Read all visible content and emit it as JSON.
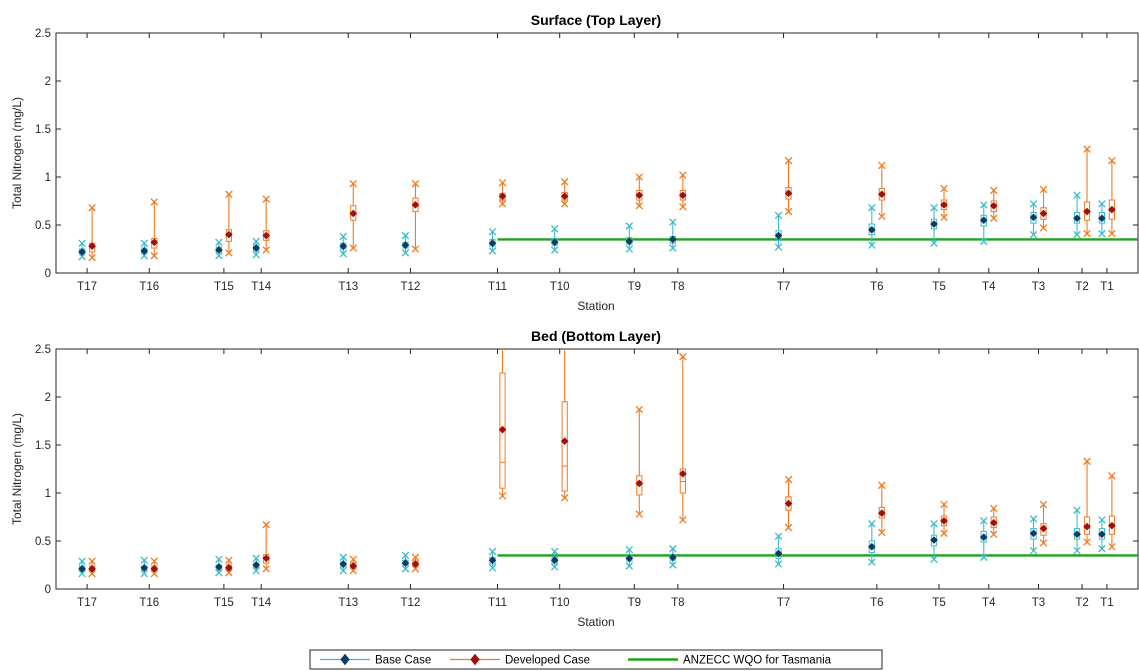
{
  "colors": {
    "base": "#3cbcc8",
    "base_marker": "#0e3a63",
    "developed": "#f07b22",
    "developed_marker": "#9e0f0f",
    "wqo": "#1aa51a",
    "axis": "#262626"
  },
  "legend": {
    "placement": "bottom",
    "entries": [
      "Base Case",
      "Developed Case",
      "ANZECC WQO for Tasmania"
    ]
  },
  "chart_data": [
    {
      "type": "box",
      "title": "Surface (Top Layer)",
      "xlabel": "Station",
      "ylabel": "Total Nitrogen (mg/L)",
      "ylim": [
        0,
        2.5
      ],
      "yticks": [
        "0",
        "0.5",
        "1",
        "1.5",
        "2",
        "2.5"
      ],
      "grid": false,
      "wqo_threshold": 0.35,
      "wqo_from_station": "T11",
      "stations": [
        {
          "name": "T17",
          "pos": 17,
          "base": {
            "min": 0.17,
            "q1": 0.2,
            "median": 0.22,
            "mean": 0.22,
            "q3": 0.25,
            "max": 0.31
          },
          "developed": {
            "min": 0.16,
            "q1": 0.22,
            "median": 0.27,
            "mean": 0.28,
            "q3": 0.31,
            "max": 0.68
          }
        },
        {
          "name": "T16",
          "pos": 16,
          "base": {
            "min": 0.18,
            "q1": 0.21,
            "median": 0.23,
            "mean": 0.23,
            "q3": 0.26,
            "max": 0.31
          },
          "developed": {
            "min": 0.18,
            "q1": 0.26,
            "median": 0.31,
            "mean": 0.32,
            "q3": 0.36,
            "max": 0.74
          }
        },
        {
          "name": "T15",
          "pos": 14.8,
          "base": {
            "min": 0.18,
            "q1": 0.22,
            "median": 0.24,
            "mean": 0.24,
            "q3": 0.27,
            "max": 0.32
          },
          "developed": {
            "min": 0.21,
            "q1": 0.33,
            "median": 0.39,
            "mean": 0.4,
            "q3": 0.45,
            "max": 0.82
          }
        },
        {
          "name": "T14",
          "pos": 14.2,
          "base": {
            "min": 0.19,
            "q1": 0.23,
            "median": 0.25,
            "mean": 0.26,
            "q3": 0.29,
            "max": 0.33
          },
          "developed": {
            "min": 0.24,
            "q1": 0.34,
            "median": 0.38,
            "mean": 0.39,
            "q3": 0.44,
            "max": 0.77
          }
        },
        {
          "name": "T13",
          "pos": 12.8,
          "base": {
            "min": 0.2,
            "q1": 0.25,
            "median": 0.28,
            "mean": 0.28,
            "q3": 0.31,
            "max": 0.38
          },
          "developed": {
            "min": 0.26,
            "q1": 0.55,
            "median": 0.62,
            "mean": 0.62,
            "q3": 0.7,
            "max": 0.93
          }
        },
        {
          "name": "T12",
          "pos": 11.8,
          "base": {
            "min": 0.21,
            "q1": 0.26,
            "median": 0.29,
            "mean": 0.29,
            "q3": 0.32,
            "max": 0.39
          },
          "developed": {
            "min": 0.25,
            "q1": 0.64,
            "median": 0.7,
            "mean": 0.71,
            "q3": 0.78,
            "max": 0.93
          }
        },
        {
          "name": "T11",
          "pos": 10.4,
          "base": {
            "min": 0.23,
            "q1": 0.28,
            "median": 0.31,
            "mean": 0.31,
            "q3": 0.35,
            "max": 0.43
          },
          "developed": {
            "min": 0.72,
            "q1": 0.76,
            "median": 0.79,
            "mean": 0.8,
            "q3": 0.83,
            "max": 0.94
          }
        },
        {
          "name": "T10",
          "pos": 9.4,
          "base": {
            "min": 0.24,
            "q1": 0.29,
            "median": 0.32,
            "mean": 0.32,
            "q3": 0.36,
            "max": 0.46
          },
          "developed": {
            "min": 0.72,
            "q1": 0.76,
            "median": 0.79,
            "mean": 0.8,
            "q3": 0.84,
            "max": 0.95
          }
        },
        {
          "name": "T9",
          "pos": 8.2,
          "base": {
            "min": 0.25,
            "q1": 0.3,
            "median": 0.33,
            "mean": 0.33,
            "q3": 0.37,
            "max": 0.49
          },
          "developed": {
            "min": 0.7,
            "q1": 0.76,
            "median": 0.8,
            "mean": 0.81,
            "q3": 0.86,
            "max": 1.0
          }
        },
        {
          "name": "T8",
          "pos": 7.5,
          "base": {
            "min": 0.26,
            "q1": 0.31,
            "median": 0.34,
            "mean": 0.35,
            "q3": 0.38,
            "max": 0.53
          },
          "developed": {
            "min": 0.69,
            "q1": 0.76,
            "median": 0.8,
            "mean": 0.81,
            "q3": 0.86,
            "max": 1.02
          }
        },
        {
          "name": "T7",
          "pos": 5.8,
          "base": {
            "min": 0.27,
            "q1": 0.34,
            "median": 0.38,
            "mean": 0.39,
            "q3": 0.44,
            "max": 0.6
          },
          "developed": {
            "min": 0.64,
            "q1": 0.77,
            "median": 0.82,
            "mean": 0.83,
            "q3": 0.89,
            "max": 1.17
          }
        },
        {
          "name": "T6",
          "pos": 4.3,
          "base": {
            "min": 0.29,
            "q1": 0.4,
            "median": 0.45,
            "mean": 0.45,
            "q3": 0.51,
            "max": 0.68
          },
          "developed": {
            "min": 0.59,
            "q1": 0.76,
            "median": 0.82,
            "mean": 0.82,
            "q3": 0.88,
            "max": 1.12
          }
        },
        {
          "name": "T5",
          "pos": 3.3,
          "base": {
            "min": 0.31,
            "q1": 0.46,
            "median": 0.51,
            "mean": 0.51,
            "q3": 0.56,
            "max": 0.68
          },
          "developed": {
            "min": 0.58,
            "q1": 0.66,
            "median": 0.71,
            "mean": 0.71,
            "q3": 0.76,
            "max": 0.88
          }
        },
        {
          "name": "T4",
          "pos": 2.5,
          "base": {
            "min": 0.33,
            "q1": 0.49,
            "median": 0.55,
            "mean": 0.55,
            "q3": 0.6,
            "max": 0.71
          },
          "developed": {
            "min": 0.57,
            "q1": 0.64,
            "median": 0.7,
            "mean": 0.7,
            "q3": 0.75,
            "max": 0.86
          }
        },
        {
          "name": "T3",
          "pos": 1.7,
          "base": {
            "min": 0.4,
            "q1": 0.52,
            "median": 0.57,
            "mean": 0.58,
            "q3": 0.63,
            "max": 0.72
          },
          "developed": {
            "min": 0.47,
            "q1": 0.56,
            "median": 0.62,
            "mean": 0.62,
            "q3": 0.68,
            "max": 0.87
          }
        },
        {
          "name": "T2",
          "pos": 1.0,
          "base": {
            "min": 0.4,
            "q1": 0.52,
            "median": 0.56,
            "mean": 0.57,
            "q3": 0.63,
            "max": 0.81
          },
          "developed": {
            "min": 0.41,
            "q1": 0.55,
            "median": 0.63,
            "mean": 0.64,
            "q3": 0.74,
            "max": 1.29
          }
        },
        {
          "name": "T1",
          "pos": 0.6,
          "base": {
            "min": 0.41,
            "q1": 0.52,
            "median": 0.57,
            "mean": 0.57,
            "q3": 0.63,
            "max": 0.72
          },
          "developed": {
            "min": 0.41,
            "q1": 0.56,
            "median": 0.65,
            "mean": 0.66,
            "q3": 0.76,
            "max": 1.17
          }
        }
      ]
    },
    {
      "type": "box",
      "title": "Bed (Bottom Layer)",
      "xlabel": "Station",
      "ylabel": "Total Nitrogen (mg/L)",
      "ylim": [
        0,
        2.5
      ],
      "yticks": [
        "0",
        "0.5",
        "1",
        "1.5",
        "2",
        "2.5"
      ],
      "grid": false,
      "wqo_threshold": 0.35,
      "wqo_from_station": "T11",
      "stations": [
        {
          "name": "T17",
          "pos": 17,
          "base": {
            "min": 0.16,
            "q1": 0.19,
            "median": 0.21,
            "mean": 0.21,
            "q3": 0.24,
            "max": 0.29
          },
          "developed": {
            "min": 0.16,
            "q1": 0.19,
            "median": 0.21,
            "mean": 0.21,
            "q3": 0.24,
            "max": 0.29
          }
        },
        {
          "name": "T16",
          "pos": 16,
          "base": {
            "min": 0.16,
            "q1": 0.19,
            "median": 0.21,
            "mean": 0.22,
            "q3": 0.24,
            "max": 0.3
          },
          "developed": {
            "min": 0.16,
            "q1": 0.19,
            "median": 0.21,
            "mean": 0.21,
            "q3": 0.24,
            "max": 0.29
          }
        },
        {
          "name": "T15",
          "pos": 14.8,
          "base": {
            "min": 0.17,
            "q1": 0.2,
            "median": 0.22,
            "mean": 0.23,
            "q3": 0.25,
            "max": 0.31
          },
          "developed": {
            "min": 0.17,
            "q1": 0.2,
            "median": 0.22,
            "mean": 0.22,
            "q3": 0.25,
            "max": 0.3
          }
        },
        {
          "name": "T14",
          "pos": 14.2,
          "base": {
            "min": 0.19,
            "q1": 0.22,
            "median": 0.24,
            "mean": 0.25,
            "q3": 0.27,
            "max": 0.32
          },
          "developed": {
            "min": 0.21,
            "q1": 0.27,
            "median": 0.31,
            "mean": 0.32,
            "q3": 0.36,
            "max": 0.67
          }
        },
        {
          "name": "T13",
          "pos": 12.8,
          "base": {
            "min": 0.19,
            "q1": 0.23,
            "median": 0.25,
            "mean": 0.26,
            "q3": 0.28,
            "max": 0.33
          },
          "developed": {
            "min": 0.19,
            "q1": 0.22,
            "median": 0.24,
            "mean": 0.24,
            "q3": 0.27,
            "max": 0.31
          }
        },
        {
          "name": "T12",
          "pos": 11.8,
          "base": {
            "min": 0.21,
            "q1": 0.25,
            "median": 0.27,
            "mean": 0.27,
            "q3": 0.3,
            "max": 0.35
          },
          "developed": {
            "min": 0.21,
            "q1": 0.24,
            "median": 0.26,
            "mean": 0.26,
            "q3": 0.29,
            "max": 0.33
          }
        },
        {
          "name": "T11",
          "pos": 10.4,
          "base": {
            "min": 0.22,
            "q1": 0.26,
            "median": 0.29,
            "mean": 0.3,
            "q3": 0.33,
            "max": 0.39
          },
          "developed": {
            "min": 0.97,
            "q1": 1.05,
            "median": 1.32,
            "mean": 1.66,
            "q3": 2.25,
            "max": 2.62
          }
        },
        {
          "name": "T10",
          "pos": 9.4,
          "base": {
            "min": 0.23,
            "q1": 0.27,
            "median": 0.3,
            "mean": 0.3,
            "q3": 0.33,
            "max": 0.39
          },
          "developed": {
            "min": 0.95,
            "q1": 1.02,
            "median": 1.28,
            "mean": 1.54,
            "q3": 1.95,
            "max": 2.62
          }
        },
        {
          "name": "T9",
          "pos": 8.2,
          "base": {
            "min": 0.24,
            "q1": 0.29,
            "median": 0.31,
            "mean": 0.32,
            "q3": 0.35,
            "max": 0.41
          },
          "developed": {
            "min": 0.78,
            "q1": 0.98,
            "median": 1.08,
            "mean": 1.1,
            "q3": 1.18,
            "max": 1.87
          }
        },
        {
          "name": "T8",
          "pos": 7.5,
          "base": {
            "min": 0.25,
            "q1": 0.3,
            "median": 0.33,
            "mean": 0.33,
            "q3": 0.36,
            "max": 0.42
          },
          "developed": {
            "min": 0.72,
            "q1": 1.0,
            "median": 1.12,
            "mean": 1.2,
            "q3": 1.25,
            "max": 2.42
          }
        },
        {
          "name": "T7",
          "pos": 5.8,
          "base": {
            "min": 0.26,
            "q1": 0.32,
            "median": 0.36,
            "mean": 0.37,
            "q3": 0.42,
            "max": 0.55
          },
          "developed": {
            "min": 0.64,
            "q1": 0.82,
            "median": 0.88,
            "mean": 0.89,
            "q3": 0.96,
            "max": 1.14
          }
        },
        {
          "name": "T6",
          "pos": 4.3,
          "base": {
            "min": 0.28,
            "q1": 0.38,
            "median": 0.43,
            "mean": 0.44,
            "q3": 0.5,
            "max": 0.68
          },
          "developed": {
            "min": 0.59,
            "q1": 0.74,
            "median": 0.79,
            "mean": 0.79,
            "q3": 0.85,
            "max": 1.08
          }
        },
        {
          "name": "T5",
          "pos": 3.3,
          "base": {
            "min": 0.31,
            "q1": 0.45,
            "median": 0.5,
            "mean": 0.51,
            "q3": 0.56,
            "max": 0.68
          },
          "developed": {
            "min": 0.58,
            "q1": 0.66,
            "median": 0.71,
            "mean": 0.71,
            "q3": 0.76,
            "max": 0.88
          }
        },
        {
          "name": "T4",
          "pos": 2.5,
          "base": {
            "min": 0.33,
            "q1": 0.49,
            "median": 0.54,
            "mean": 0.54,
            "q3": 0.6,
            "max": 0.71
          },
          "developed": {
            "min": 0.57,
            "q1": 0.64,
            "median": 0.69,
            "mean": 0.69,
            "q3": 0.75,
            "max": 0.84
          }
        },
        {
          "name": "T3",
          "pos": 1.7,
          "base": {
            "min": 0.4,
            "q1": 0.52,
            "median": 0.57,
            "mean": 0.58,
            "q3": 0.63,
            "max": 0.73
          },
          "developed": {
            "min": 0.48,
            "q1": 0.56,
            "median": 0.62,
            "mean": 0.63,
            "q3": 0.68,
            "max": 0.88
          }
        },
        {
          "name": "T2",
          "pos": 1.0,
          "base": {
            "min": 0.4,
            "q1": 0.52,
            "median": 0.56,
            "mean": 0.57,
            "q3": 0.63,
            "max": 0.82
          },
          "developed": {
            "min": 0.49,
            "q1": 0.57,
            "median": 0.64,
            "mean": 0.65,
            "q3": 0.75,
            "max": 1.33
          }
        },
        {
          "name": "T1",
          "pos": 0.6,
          "base": {
            "min": 0.42,
            "q1": 0.52,
            "median": 0.57,
            "mean": 0.57,
            "q3": 0.63,
            "max": 0.72
          },
          "developed": {
            "min": 0.44,
            "q1": 0.57,
            "median": 0.65,
            "mean": 0.66,
            "q3": 0.76,
            "max": 1.18
          }
        }
      ]
    }
  ]
}
